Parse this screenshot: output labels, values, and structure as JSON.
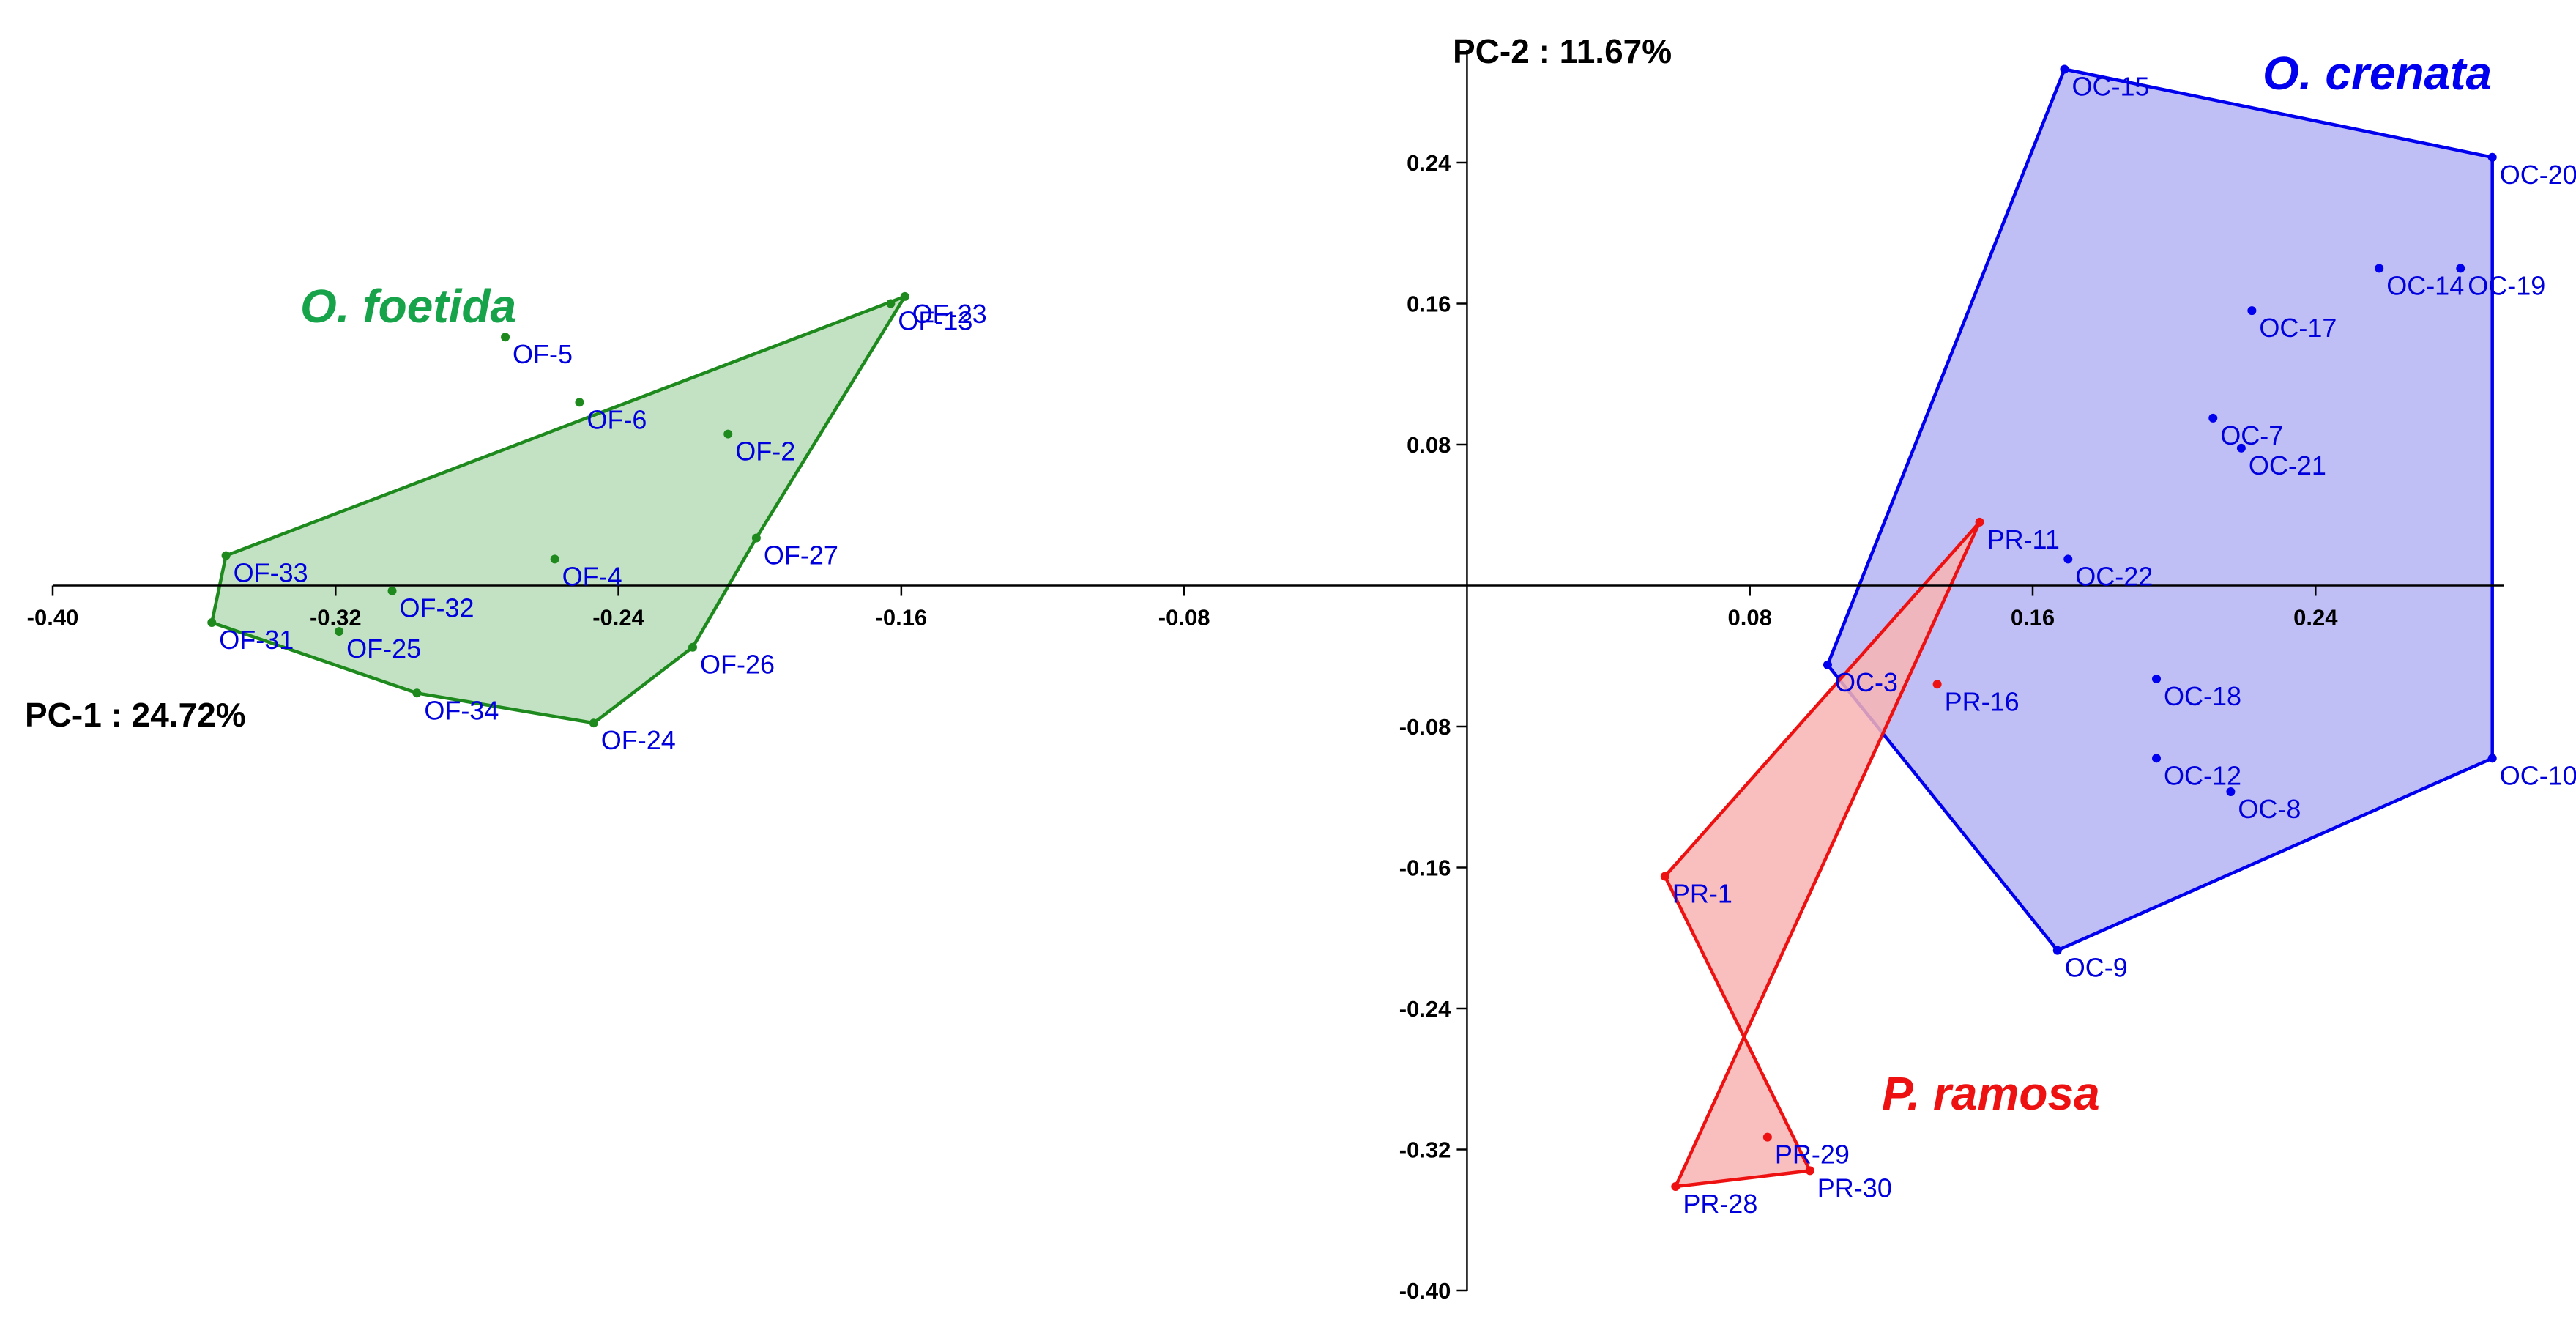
{
  "chart_data": {
    "type": "scatter",
    "title": "",
    "xlabel": "PC-1 : 24.72%",
    "ylabel": "PC-2 : 11.67%",
    "xlim": [
      -0.4,
      0.3
    ],
    "ylim": [
      -0.4,
      0.28
    ],
    "x_ticks": [
      "-0.40",
      "-0.32",
      "-0.24",
      "-0.16",
      "-0.08",
      "0.08",
      "0.16",
      "0.24"
    ],
    "y_ticks": [
      "0.24",
      "0.16",
      "0.08",
      "-0.08",
      "-0.16",
      "-0.24",
      "-0.32",
      "-0.40"
    ],
    "grid": false,
    "series": [
      {
        "name": "O. foetida",
        "color": "#1e8a1e",
        "fill": "#b9ddb9",
        "label_color": "#0000dd",
        "label_name_color": "#16a34a",
        "points": [
          {
            "label": "OF-23",
            "x": -0.159,
            "y": 0.164
          },
          {
            "label": "OF-13",
            "x": -0.163,
            "y": 0.16
          },
          {
            "label": "OF-5",
            "x": -0.272,
            "y": 0.141
          },
          {
            "label": "OF-6",
            "x": -0.251,
            "y": 0.104
          },
          {
            "label": "OF-2",
            "x": -0.209,
            "y": 0.086
          },
          {
            "label": "OF-27",
            "x": -0.201,
            "y": 0.027
          },
          {
            "label": "OF-33",
            "x": -0.351,
            "y": 0.017
          },
          {
            "label": "OF-4",
            "x": -0.258,
            "y": 0.015
          },
          {
            "label": "OF-32",
            "x": -0.304,
            "y": -0.003
          },
          {
            "label": "OF-31",
            "x": -0.355,
            "y": -0.021
          },
          {
            "label": "OF-25",
            "x": -0.319,
            "y": -0.026
          },
          {
            "label": "OF-26",
            "x": -0.219,
            "y": -0.035
          },
          {
            "label": "OF-34",
            "x": -0.297,
            "y": -0.061
          },
          {
            "label": "OF-24",
            "x": -0.247,
            "y": -0.078
          }
        ],
        "hull": [
          "OF-23",
          "OF-33",
          "OF-31",
          "OF-34",
          "OF-24",
          "OF-26",
          "OF-27"
        ]
      },
      {
        "name": "O. crenata",
        "color": "#0000ee",
        "fill": "#b4b4f5",
        "label_color": "#0000dd",
        "label_name_color": "#0000ee",
        "points": [
          {
            "label": "OC-15",
            "x": 0.169,
            "y": 0.293
          },
          {
            "label": "OC-20",
            "x": 0.29,
            "y": 0.243
          },
          {
            "label": "OC-14",
            "x": 0.258,
            "y": 0.18
          },
          {
            "label": "OC-19",
            "x": 0.281,
            "y": 0.18
          },
          {
            "label": "OC-17",
            "x": 0.222,
            "y": 0.156
          },
          {
            "label": "OC-7",
            "x": 0.211,
            "y": 0.095
          },
          {
            "label": "OC-21",
            "x": 0.219,
            "y": 0.078
          },
          {
            "label": "OC-22",
            "x": 0.17,
            "y": 0.015
          },
          {
            "label": "OC-3",
            "x": 0.102,
            "y": -0.045
          },
          {
            "label": "OC-18",
            "x": 0.195,
            "y": -0.053
          },
          {
            "label": "OC-12",
            "x": 0.195,
            "y": -0.098
          },
          {
            "label": "OC-8",
            "x": 0.216,
            "y": -0.117
          },
          {
            "label": "OC-10",
            "x": 0.29,
            "y": -0.098
          },
          {
            "label": "OC-9",
            "x": 0.167,
            "y": -0.207
          }
        ],
        "hull": [
          "OC-15",
          "OC-20",
          "OC-10",
          "OC-9",
          "OC-3"
        ]
      },
      {
        "name": "P. ramosa",
        "color": "#ee1111",
        "fill": "#f8b4b4",
        "label_color": "#0000dd",
        "label_name_color": "#ee1111",
        "points": [
          {
            "label": "PR-11",
            "x": 0.145,
            "y": 0.036
          },
          {
            "label": "PR-16",
            "x": 0.133,
            "y": -0.056
          },
          {
            "label": "PR-1",
            "x": 0.056,
            "y": -0.165
          },
          {
            "label": "PR-29",
            "x": 0.085,
            "y": -0.313
          },
          {
            "label": "PR-30",
            "x": 0.097,
            "y": -0.332
          },
          {
            "label": "PR-28",
            "x": 0.059,
            "y": -0.341
          }
        ],
        "hull": [
          "PR-11",
          "PR-28",
          "PR-30",
          "PR-1"
        ]
      }
    ]
  }
}
